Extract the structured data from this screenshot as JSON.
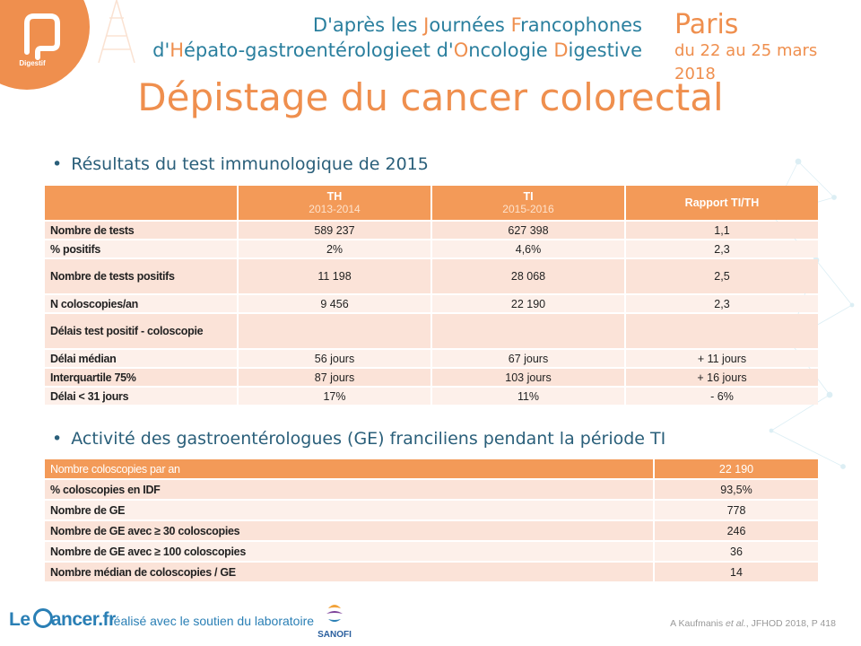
{
  "header": {
    "logo_label": "Digestif",
    "conf_line1_parts": [
      "D'après les ",
      "J",
      "ournées ",
      "F",
      "rancophones"
    ],
    "conf_line2_parts": [
      "d'",
      "H",
      "épato-gastroentérologieet d'",
      "O",
      "ncologie ",
      "D",
      "igestive"
    ],
    "city": "Paris",
    "dates": "du 22 au 25 mars 2018"
  },
  "title": "Dépistage du cancer colorectal",
  "section1": {
    "bullet": "Résultats du test immunologique de 2015",
    "columns": [
      {
        "label": "TH",
        "sub": "2013-2014"
      },
      {
        "label": "TI",
        "sub": "2015-2016"
      },
      {
        "label": "Rapport TI/TH",
        "sub": ""
      }
    ],
    "rows": [
      {
        "label": "Nombre de tests",
        "values": [
          "589 237",
          "627 398",
          "1,1"
        ]
      },
      {
        "label": "% positifs",
        "values": [
          "2%",
          "4,6%",
          "2,3"
        ]
      },
      {
        "label": "Nombre de tests positifs",
        "values": [
          "11 198",
          "28 068",
          "2,5"
        ]
      },
      {
        "label": "N coloscopies/an",
        "values": [
          "9 456",
          "22 190",
          "2,3"
        ]
      },
      {
        "label": "Délais test positif - coloscopie",
        "values": [
          "",
          "",
          ""
        ]
      },
      {
        "label": "Délai médian",
        "values": [
          "56 jours",
          "67 jours",
          "+ 11 jours"
        ]
      },
      {
        "label": "Interquartile 75%",
        "values": [
          "87 jours",
          "103 jours",
          "+ 16 jours"
        ]
      },
      {
        "label": "Délai < 31 jours",
        "values": [
          "17%",
          "11%",
          "- 6%"
        ]
      }
    ]
  },
  "section2": {
    "bullet": "Activité des gastroentérologues (GE) franciliens pendant la période TI",
    "rows": [
      {
        "label": "Nombre coloscopies par an",
        "value": "22 190"
      },
      {
        "label": "% coloscopies en IDF",
        "value": "93,5%"
      },
      {
        "label": "Nombre de GE",
        "value": "778"
      },
      {
        "label": "Nombre de GE avec ≥ 30 coloscopies",
        "value": "246"
      },
      {
        "label": "Nombre de GE avec ≥ 100 coloscopies",
        "value": "36"
      },
      {
        "label": "Nombre médian de coloscopies / GE",
        "value": "14"
      }
    ]
  },
  "footer": {
    "logo_prefix": "Le ",
    "logo_suffix": "ancer.fr",
    "support": "réalisé avec le soutien du laboratoire",
    "sponsor": "SANOFI",
    "citation_prefix": "A Kaufmanis ",
    "citation_italic": "et al.",
    "citation_suffix": ", JFHOD 2018, P 418"
  },
  "colors": {
    "accent_orange": "#ef8f4e",
    "table_header": "#f39a58",
    "row_dark": "#fbe3d8",
    "row_light": "#fdf0ea",
    "conf_blue": "#2a7f9e",
    "brand_blue": "#2a7fb5"
  }
}
